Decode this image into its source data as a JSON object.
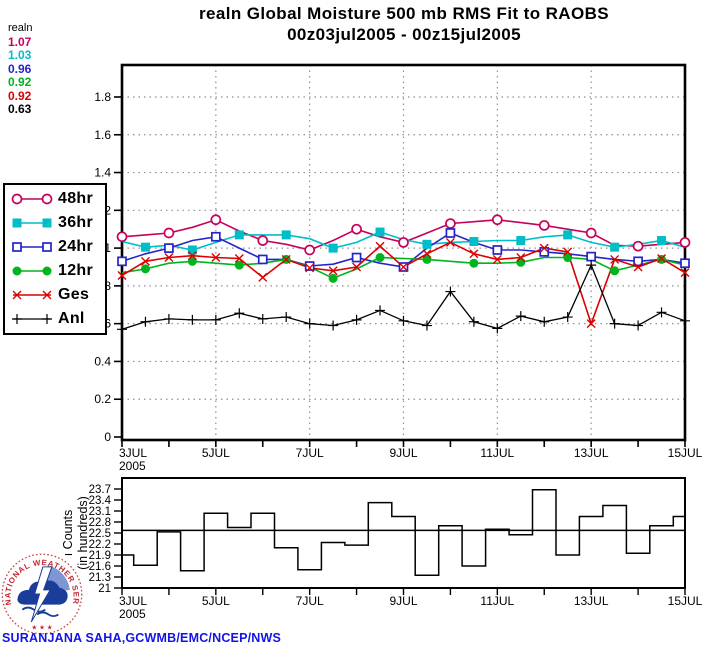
{
  "page": {
    "title_line1": "realn Global Moisture 500 mb RMS Fit to RAOBS",
    "title_line2": "00z03jul2005 - 00z15jul2005",
    "caption": "SURANJANA SAHA,GCWMB/EMC/NCEP/NWS"
  },
  "stats": {
    "label": "realn",
    "values": [
      {
        "text": "1.07",
        "color": "#c8005a"
      },
      {
        "text": "1.03",
        "color": "#00bec8"
      },
      {
        "text": "0.96",
        "color": "#2424c8"
      },
      {
        "text": "0.92",
        "color": "#00b41e"
      },
      {
        "text": "0.92",
        "color": "#dc0000"
      },
      {
        "text": "0.63",
        "color": "#000000"
      }
    ]
  },
  "logo": {
    "arc_text": "NATIONAL WEATHER SERVICE",
    "stars": "★ ★ ★",
    "text_color": "#c22633",
    "emblem_color": "#1a3d99"
  },
  "chart_data": [
    {
      "type": "line",
      "title": "realn Global Moisture 500 mb RMS Fit to RAOBS",
      "subtitle": "00z03jul2005 - 00z15jul2005",
      "xlabel": "",
      "ylabel": "",
      "x_unit": "days (12-hour steps from 00z03jul2005 to 00z15jul2005)",
      "x_start_day": 3,
      "x_end_day": 15,
      "x_step_days": 0.5,
      "x_tick_labels": [
        {
          "day": 3,
          "label": "3JUL",
          "sublabel": "2005"
        },
        {
          "day": 5,
          "label": "5JUL"
        },
        {
          "day": 7,
          "label": "7JUL"
        },
        {
          "day": 9,
          "label": "9JUL"
        },
        {
          "day": 11,
          "label": "11JUL"
        },
        {
          "day": 13,
          "label": "13JUL"
        },
        {
          "day": 15,
          "label": "15JUL"
        }
      ],
      "minor_x_tick_days": [
        3,
        4,
        5,
        6,
        7,
        8,
        9,
        10,
        11,
        12,
        13,
        14,
        15
      ],
      "v_gridline_days": [
        5,
        7,
        9,
        11,
        13
      ],
      "y_ticks": [
        {
          "value": 0,
          "label": "0"
        },
        {
          "value": 0.2,
          "label": "0.2"
        },
        {
          "value": 0.4,
          "label": "0.4"
        },
        {
          "value": 0.6,
          "label": "0.6"
        },
        {
          "value": 0.8,
          "label": "0.8"
        },
        {
          "value": 1,
          "label": "1"
        },
        {
          "value": 1.2,
          "label": "1.2"
        },
        {
          "value": 1.4,
          "label": "1.4"
        },
        {
          "value": 1.6,
          "label": "1.6"
        },
        {
          "value": 1.8,
          "label": "1.8"
        }
      ],
      "ylim": [
        0,
        1.97
      ],
      "grid": true,
      "legend_position": "left-outside-box",
      "series": [
        {
          "name": "48hr",
          "color": "#c8005a",
          "marker": "circle-open",
          "marker_every": 2,
          "marker_phase": 0,
          "mean_stat": 1.07,
          "values": [
            1.06,
            1.07,
            1.08,
            1.11,
            1.15,
            1.09,
            1.04,
            1.02,
            0.99,
            1.04,
            1.1,
            1.06,
            1.03,
            1.08,
            1.13,
            1.14,
            1.15,
            1.135,
            1.12,
            1.1,
            1.08,
            1.015,
            1.01,
            1.02,
            1.03
          ]
        },
        {
          "name": "36hr",
          "color": "#00bec8",
          "marker": "square-filled",
          "marker_every": 2,
          "marker_phase": 1,
          "mean_stat": 1.03,
          "values": [
            1.035,
            1.005,
            1.015,
            0.99,
            1.03,
            1.07,
            1.07,
            1.07,
            1.05,
            1.0,
            1.03,
            1.085,
            1.045,
            1.02,
            1.03,
            1.035,
            1.04,
            1.04,
            1.06,
            1.07,
            1.03,
            1.005,
            1.02,
            1.04,
            1.005
          ]
        },
        {
          "name": "24hr",
          "color": "#2424c8",
          "marker": "square-open",
          "marker_every": 2,
          "marker_phase": 0,
          "mean_stat": 0.96,
          "values": [
            0.93,
            0.97,
            1.0,
            1.04,
            1.06,
            1.0,
            0.94,
            0.94,
            0.905,
            0.915,
            0.95,
            0.92,
            0.9,
            1.0,
            1.08,
            1.03,
            0.99,
            0.99,
            0.98,
            0.97,
            0.955,
            0.94,
            0.93,
            0.94,
            0.92
          ]
        },
        {
          "name": "12hr",
          "color": "#00b41e",
          "marker": "circle-filled",
          "marker_every": 2,
          "marker_phase": 1,
          "mean_stat": 0.92,
          "values": [
            0.87,
            0.89,
            0.92,
            0.93,
            0.92,
            0.91,
            0.92,
            0.94,
            0.9,
            0.84,
            0.89,
            0.95,
            0.945,
            0.94,
            0.93,
            0.92,
            0.92,
            0.925,
            0.95,
            0.95,
            0.94,
            0.88,
            0.91,
            0.94,
            0.91
          ]
        },
        {
          "name": "Ges",
          "color": "#dc0000",
          "marker": "x",
          "marker_every": 1,
          "marker_phase": 0,
          "mean_stat": 0.92,
          "values": [
            0.855,
            0.93,
            0.95,
            0.96,
            0.95,
            0.945,
            0.845,
            0.94,
            0.895,
            0.88,
            0.9,
            1.01,
            0.9,
            0.97,
            1.03,
            0.97,
            0.94,
            0.95,
            1.0,
            0.98,
            0.6,
            0.94,
            0.9,
            0.945,
            0.87
          ]
        },
        {
          "name": "Anl",
          "color": "#000000",
          "marker": "plus",
          "marker_every": 1,
          "marker_phase": 0,
          "mean_stat": 0.63,
          "values": [
            0.57,
            0.61,
            0.625,
            0.62,
            0.62,
            0.655,
            0.625,
            0.635,
            0.6,
            0.59,
            0.62,
            0.67,
            0.615,
            0.59,
            0.77,
            0.61,
            0.575,
            0.64,
            0.61,
            0.635,
            0.91,
            0.6,
            0.59,
            0.66,
            0.615
          ]
        }
      ]
    },
    {
      "type": "step",
      "title": "",
      "ylabel_line1": "ı Counts",
      "ylabel_line2": "(in hundreds)",
      "x_start_day": 3,
      "x_end_day": 15,
      "x_step_days": 0.5,
      "x_tick_labels": [
        {
          "day": 3,
          "label": "3JUL",
          "sublabel": "2005"
        },
        {
          "day": 5,
          "label": "5JUL"
        },
        {
          "day": 7,
          "label": "7JUL"
        },
        {
          "day": 9,
          "label": "9JUL"
        },
        {
          "day": 11,
          "label": "11JUL"
        },
        {
          "day": 13,
          "label": "13JUL"
        },
        {
          "day": 15,
          "label": "15JUL"
        }
      ],
      "minor_x_tick_days": [
        3,
        4,
        5,
        6,
        7,
        8,
        9,
        10,
        11,
        12,
        13,
        14,
        15
      ],
      "y_ticks": [
        {
          "value": 21,
          "label": "21"
        },
        {
          "value": 21.3,
          "label": "21.3"
        },
        {
          "value": 21.6,
          "label": "21.6"
        },
        {
          "value": 21.9,
          "label": "21.9"
        },
        {
          "value": 22.2,
          "label": "22.2"
        },
        {
          "value": 22.5,
          "label": "22.5"
        },
        {
          "value": 22.8,
          "label": "22.8"
        },
        {
          "value": 23.1,
          "label": "23.1"
        },
        {
          "value": 23.4,
          "label": "23.4"
        },
        {
          "value": 23.7,
          "label": "23.7"
        }
      ],
      "ylim": [
        21,
        24
      ],
      "reference_line": 22.57,
      "grid": false,
      "line_color": "#000000",
      "values": [
        21.9,
        21.62,
        22.53,
        21.47,
        23.04,
        22.65,
        23.04,
        22.1,
        21.5,
        22.24,
        22.17,
        23.33,
        22.95,
        21.35,
        22.7,
        21.6,
        22.6,
        22.45,
        23.68,
        21.9,
        22.95,
        23.25,
        21.95,
        22.7,
        22.95
      ]
    }
  ]
}
